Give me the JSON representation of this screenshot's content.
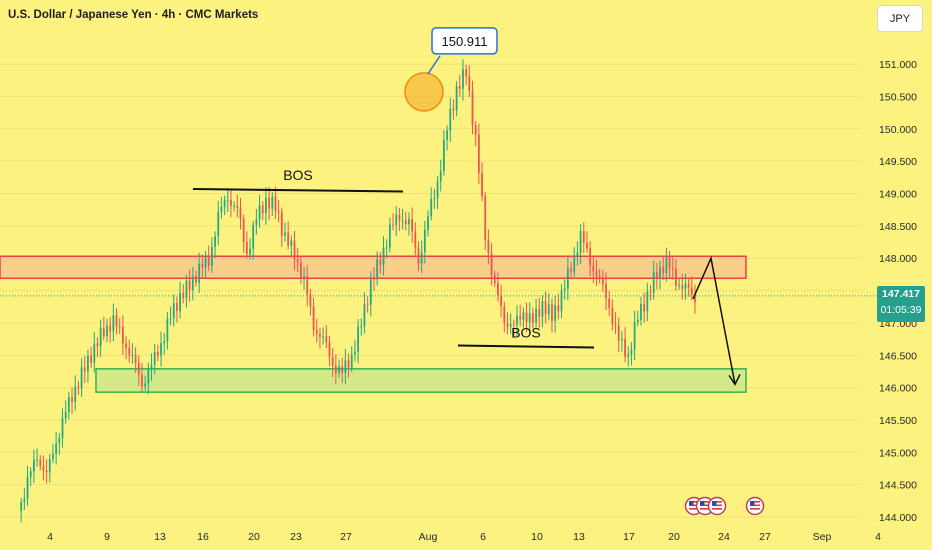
{
  "header": {
    "title": "U.S. Dollar / Japanese Yen · 4h · CMC Markets",
    "currency": "JPY"
  },
  "price_tag": {
    "price": "147.417",
    "countdown": "01:05:39"
  },
  "annotations": {
    "peak_label": "150.911",
    "bos_upper": "BOS",
    "bos_lower": "BOS"
  },
  "colors": {
    "background": "#fbf280",
    "bull": "#22a884",
    "bear": "#ef5350",
    "resistance_fill": "#f7c48a",
    "resistance_border": "#e8414a",
    "support_fill": "#d2e88a",
    "support_border": "#33b24a"
  },
  "chart_data": {
    "type": "candlestick",
    "title": "U.S. Dollar / Japanese Yen · 4h · CMC Markets",
    "ylim": [
      144.0,
      151.6
    ],
    "y_ticks": [
      "144.000",
      "144.500",
      "145.000",
      "145.500",
      "146.000",
      "146.500",
      "147.000",
      "147.500",
      "148.000",
      "148.500",
      "149.000",
      "149.500",
      "150.000",
      "150.500",
      "151.000"
    ],
    "x_ticks": [
      "4",
      "9",
      "13",
      "16",
      "20",
      "23",
      "27",
      "Aug",
      "6",
      "10",
      "13",
      "17",
      "20",
      "24",
      "27",
      "Sep",
      "4"
    ],
    "resistance_zone": [
      147.69,
      148.03
    ],
    "support_zone": [
      145.93,
      146.29
    ],
    "last_price": 147.417,
    "peak": 150.911,
    "close_path": [
      144.1,
      144.5,
      145.0,
      144.6,
      145.2,
      145.6,
      146.0,
      146.3,
      146.6,
      146.9,
      147.0,
      146.8,
      146.4,
      146.1,
      146.3,
      146.7,
      147.1,
      147.4,
      147.6,
      147.8,
      148.0,
      148.6,
      149.0,
      148.7,
      148.1,
      148.6,
      148.9,
      148.8,
      148.3,
      148.1,
      147.6,
      147.0,
      146.7,
      146.4,
      146.2,
      146.5,
      147.0,
      147.6,
      148.0,
      148.4,
      148.7,
      148.5,
      148.0,
      148.6,
      149.2,
      150.0,
      150.6,
      150.9,
      149.8,
      148.4,
      147.5,
      147.1,
      146.9,
      147.2,
      147.0,
      147.3,
      147.1,
      147.4,
      147.9,
      148.3,
      148.0,
      147.6,
      147.3,
      146.7,
      146.5,
      147.1,
      147.4,
      147.8,
      147.9,
      147.7,
      147.5,
      147.4
    ]
  }
}
